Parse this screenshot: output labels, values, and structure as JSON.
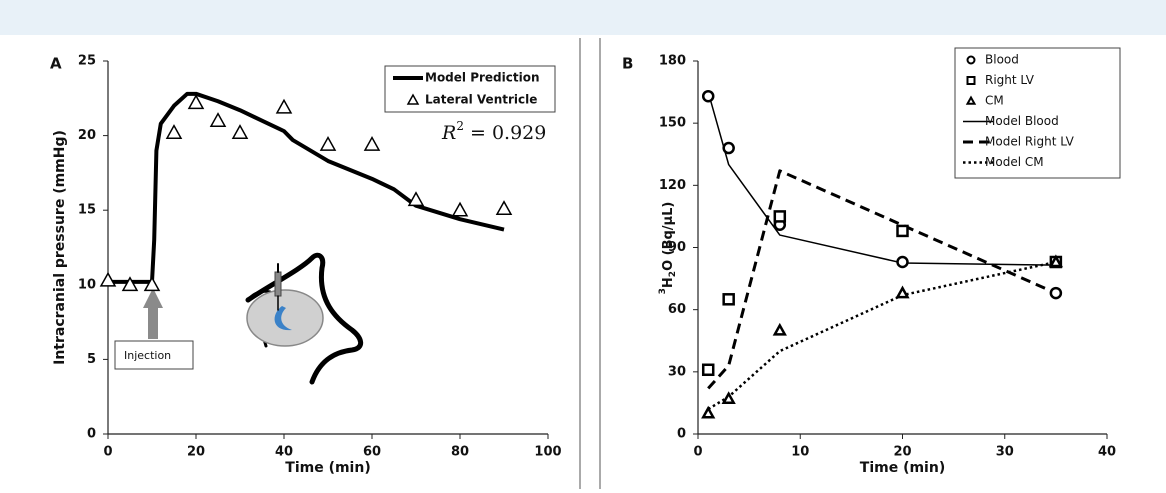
{
  "chart_data": [
    {
      "type": "line",
      "panel": "A",
      "xlabel": "Time (min)",
      "ylabel": "Intracranial pressure (mmHg)",
      "xlim": [
        0,
        100
      ],
      "ylim": [
        0,
        25
      ],
      "xticks": [
        0,
        20,
        40,
        60,
        80,
        100
      ],
      "yticks": [
        0,
        5,
        10,
        15,
        20,
        25
      ],
      "annotation": {
        "base": "R",
        "sup": "2",
        "text": " = 0.929"
      },
      "callout": "Injection",
      "series": [
        {
          "name": "Model Prediction",
          "kind": "line",
          "style": "solid",
          "width": 4,
          "color": "#000000",
          "x": [
            0,
            10,
            10.5,
            11,
            12,
            15,
            18,
            20,
            25,
            30,
            35,
            40,
            42,
            50,
            60,
            65,
            70,
            80,
            90
          ],
          "values": [
            10.2,
            10.2,
            13,
            19,
            20.8,
            22,
            22.8,
            22.8,
            22.3,
            21.7,
            21,
            20.3,
            19.7,
            18.3,
            17.1,
            16.4,
            15.3,
            14.4,
            13.7
          ]
        },
        {
          "name": "Lateral Ventricle",
          "kind": "marker",
          "marker": "triangle",
          "color": "#000000",
          "x": [
            0,
            5,
            10,
            15,
            20,
            25,
            30,
            40,
            50,
            60,
            70,
            80,
            90
          ],
          "values": [
            10.3,
            10,
            10,
            20.2,
            22.2,
            21,
            20.2,
            21.9,
            19.4,
            19.4,
            15.7,
            15,
            15.1
          ]
        }
      ]
    },
    {
      "type": "line",
      "panel": "B",
      "xlabel": "Time (min)",
      "ylabel": [
        "3",
        "H",
        "2",
        "O (Bq/µL)"
      ],
      "xlim": [
        0,
        40
      ],
      "ylim": [
        0,
        180
      ],
      "xticks": [
        0,
        10,
        20,
        30,
        40
      ],
      "yticks": [
        0,
        30,
        60,
        90,
        120,
        150,
        180
      ],
      "series": [
        {
          "name": "Blood",
          "kind": "marker",
          "marker": "circle",
          "color": "#000000",
          "x": [
            1,
            3,
            8,
            20,
            35
          ],
          "values": [
            163,
            138,
            101,
            83,
            68
          ]
        },
        {
          "name": "Right LV",
          "kind": "marker",
          "marker": "square",
          "color": "#000000",
          "x": [
            1,
            3,
            8,
            20,
            35
          ],
          "values": [
            31,
            65,
            105,
            98,
            83
          ]
        },
        {
          "name": "CM",
          "kind": "marker",
          "marker": "triangle",
          "color": "#000000",
          "x": [
            1,
            3,
            8,
            20,
            35
          ],
          "values": [
            10,
            17,
            50,
            68,
            83
          ]
        },
        {
          "name": "Model Blood",
          "kind": "line",
          "style": "solid",
          "width": 1.5,
          "color": "#000000",
          "x": [
            1,
            3,
            8,
            20,
            35
          ],
          "values": [
            165,
            130,
            96,
            82.5,
            81.5
          ]
        },
        {
          "name": "Model Right LV",
          "kind": "line",
          "style": "dashed",
          "width": 3,
          "color": "#000000",
          "x": [
            1,
            3,
            8,
            35
          ],
          "values": [
            22,
            33,
            127,
            68
          ]
        },
        {
          "name": "Model CM",
          "kind": "line",
          "style": "dotted",
          "width": 2.5,
          "color": "#000000",
          "x": [
            1,
            3,
            8,
            20,
            35
          ],
          "values": [
            12,
            18,
            40,
            67,
            83
          ]
        }
      ]
    }
  ]
}
